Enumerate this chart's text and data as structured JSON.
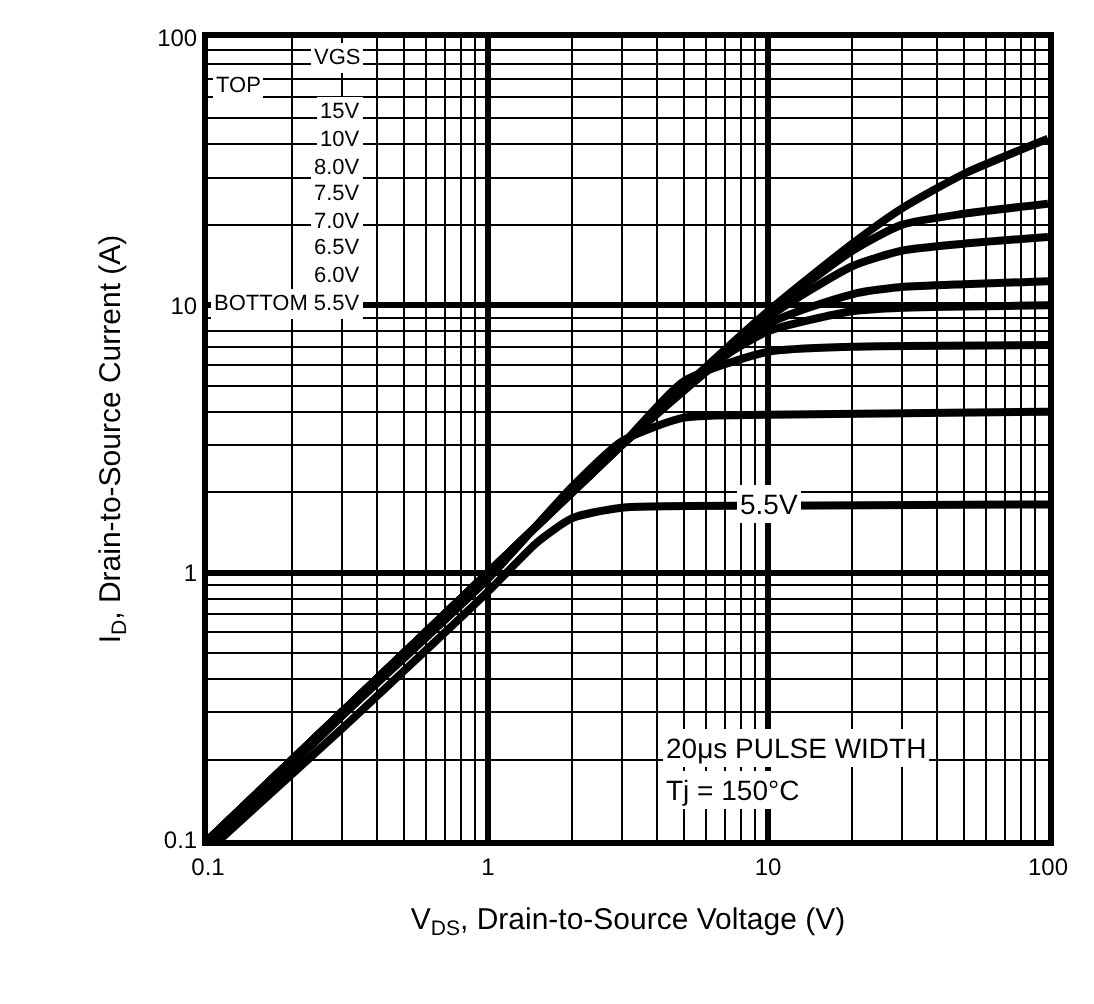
{
  "chart_data": {
    "type": "line",
    "xlabel": "V$_{DS}$, Drain-to-Source Voltage (V)",
    "ylabel": "I$_{D}$, Drain-to-Source Current (A)",
    "log": "xy",
    "grid": true,
    "marker": "none",
    "line_style": "solid",
    "xlim": [
      0.1,
      100
    ],
    "ylim": [
      0.1,
      100
    ],
    "xticks": [
      0.1,
      1,
      10,
      100
    ],
    "yticks": [
      0.1,
      1,
      10,
      100
    ],
    "series": [
      {
        "color": "#000000",
        "x": [
          0.1,
          0.3,
          1,
          3,
          10,
          20,
          30,
          50,
          100
        ],
        "values": [
          0.1,
          0.3,
          1,
          3,
          9.5,
          17,
          23,
          31,
          42
        ]
      },
      {
        "color": "#000000",
        "x": [
          0.1,
          0.3,
          1,
          3,
          10,
          20,
          30,
          50,
          100
        ],
        "values": [
          0.1,
          0.3,
          1,
          3,
          9.3,
          16,
          20,
          22,
          24
        ]
      },
      {
        "color": "#000000",
        "x": [
          0.1,
          0.3,
          1,
          3,
          10,
          20,
          30,
          50,
          100
        ],
        "values": [
          0.1,
          0.3,
          1,
          3,
          9,
          14,
          16,
          17,
          18
        ]
      },
      {
        "color": "#000000",
        "x": [
          0.1,
          0.3,
          1,
          3,
          10,
          20,
          30,
          50,
          100
        ],
        "values": [
          0.1,
          0.3,
          1,
          3,
          8.5,
          11,
          11.7,
          12,
          12.3
        ]
      },
      {
        "color": "#000000",
        "x": [
          0.1,
          0.3,
          1,
          3,
          6,
          10,
          20,
          30,
          100
        ],
        "values": [
          0.1,
          0.3,
          1,
          3,
          5.8,
          8,
          9.5,
          9.8,
          10
        ]
      },
      {
        "color": "#000000",
        "x": [
          0.1,
          0.3,
          1,
          3,
          5,
          10,
          20,
          100
        ],
        "values": [
          0.1,
          0.3,
          1,
          3,
          5.2,
          6.7,
          7,
          7.1
        ]
      },
      {
        "color": "#000000",
        "x": [
          0.105,
          0.3,
          1,
          2,
          3,
          5,
          10,
          100
        ],
        "values": [
          0.1,
          0.29,
          0.95,
          2.1,
          3.1,
          3.8,
          3.9,
          4
        ]
      },
      {
        "color": "#000000",
        "x": [
          0.11,
          0.3,
          1,
          1.5,
          2,
          3,
          10,
          100
        ],
        "values": [
          0.1,
          0.26,
          0.85,
          1.3,
          1.6,
          1.75,
          1.78,
          1.8
        ]
      }
    ],
    "annotations": [
      "VGS",
      "TOP",
      "15V",
      "10V",
      "8.0V",
      "7.5V",
      "7.0V",
      "6.5V",
      "6.0V",
      "BOTTOM 5.5V",
      {
        "text": "5.5V",
        "x": 10,
        "y": 1.8
      },
      "20μs PULSE WIDTH",
      "Tj = 150°C"
    ]
  }
}
